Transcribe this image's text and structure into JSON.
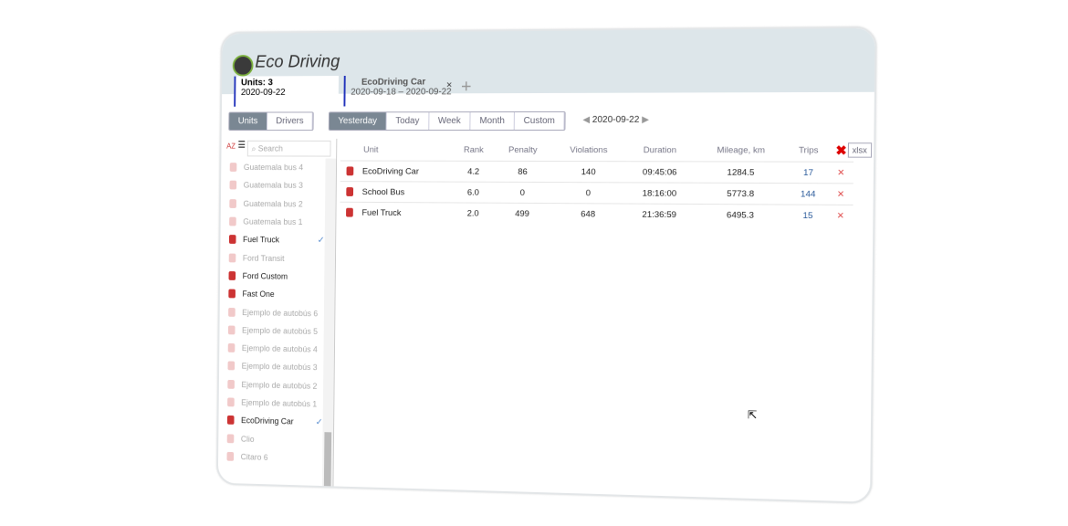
{
  "app": {
    "title": "Eco Driving"
  },
  "tabs": [
    {
      "title": "Units: 3",
      "sub": "2020-09-22"
    },
    {
      "title": "EcoDriving Car",
      "sub": "2020-09-18  –  2020-09-22",
      "close": "×"
    }
  ],
  "add_tab": "+",
  "mode": [
    "Units",
    "Drivers"
  ],
  "periods": [
    "Yesterday",
    "Today",
    "Week",
    "Month",
    "Custom"
  ],
  "date": "2020-09-22",
  "search_placeholder": "Search",
  "units": [
    {
      "name": "Guatemala bus 4",
      "on": false
    },
    {
      "name": "Guatemala bus 3",
      "on": false
    },
    {
      "name": "Guatemala bus 2",
      "on": false
    },
    {
      "name": "Guatemala bus 1",
      "on": false
    },
    {
      "name": "Fuel Truck",
      "on": true,
      "checked": true
    },
    {
      "name": "Ford Transit",
      "on": false
    },
    {
      "name": "Ford Custom",
      "on": true
    },
    {
      "name": "Fast One",
      "on": true
    },
    {
      "name": "Ejemplo de autobús 6",
      "on": false
    },
    {
      "name": "Ejemplo de autobús 5",
      "on": false
    },
    {
      "name": "Ejemplo de autobús 4",
      "on": false
    },
    {
      "name": "Ejemplo de autobús 3",
      "on": false
    },
    {
      "name": "Ejemplo de autobús 2",
      "on": false
    },
    {
      "name": "Ejemplo de autobús 1",
      "on": false
    },
    {
      "name": "EcoDriving Car",
      "on": true,
      "checked": true
    },
    {
      "name": "Clio",
      "on": false
    },
    {
      "name": "Citaro 6",
      "on": false
    }
  ],
  "table": {
    "headers": [
      "Unit",
      "Rank",
      "Penalty",
      "Violations",
      "Duration",
      "Mileage, km",
      "Trips"
    ],
    "rows": [
      [
        "EcoDriving Car",
        "4.2",
        "86",
        "140",
        "09:45:06",
        "1284.5",
        "17"
      ],
      [
        "School Bus",
        "6.0",
        "0",
        "0",
        "18:16:00",
        "5773.8",
        "144"
      ],
      [
        "Fuel Truck",
        "2.0",
        "499",
        "648",
        "21:36:59",
        "6495.3",
        "15"
      ]
    ]
  },
  "export": "xlsx",
  "colors": {
    "accent": "#7a8793",
    "header_bg": "#dde6ea",
    "delete": "#e05050"
  }
}
